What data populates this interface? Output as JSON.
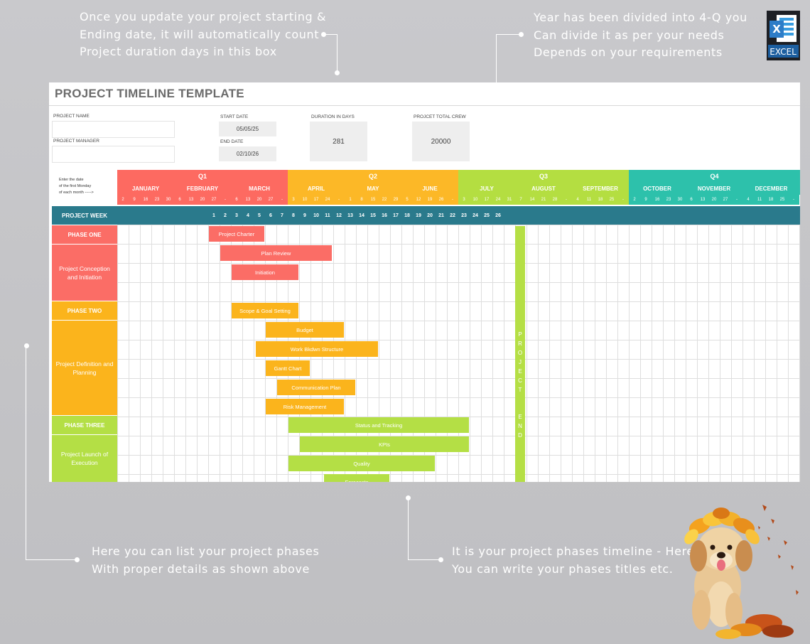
{
  "annotations": {
    "top_left": "Once you update your project starting &\nEnding date, it will automatically count\nProject duration days in this box",
    "top_right": "Year has been divided into 4-Q you\nCan divide it as per your needs\nDepends on your requirements",
    "bottom_left": "Here you can list your project phases\nWith proper details as shown above",
    "bottom_right": "It is your project phases timeline - Here\nYou can write your phases titles etc."
  },
  "excel_badge": {
    "letter": "X",
    "label": "EXCEL",
    "icon": "excel-icon"
  },
  "sheet": {
    "title": "PROJECT TIMELINE TEMPLATE",
    "project_name_label": "PROJECT NAME",
    "project_manager_label": "PROJECT MANAGER",
    "start_date_label": "START DATE",
    "start_date": "05/05/25",
    "end_date_label": "END DATE",
    "end_date": "02/10/26",
    "duration_label": "DURATION IN DAYS",
    "duration": "281",
    "crew_label": "PROJCET TOTAL CREW",
    "crew": "20000",
    "hint": "Enter the date\nof the first Monday\nof each month ----->",
    "quarters": [
      "Q1",
      "Q2",
      "Q3",
      "Q4"
    ],
    "months": [
      "JANUARY",
      "FEBRUARY",
      "MARCH",
      "APRIL",
      "MAY",
      "JUNE",
      "JULY",
      "AUGUST",
      "SEPTEMBER",
      "OCTOBER",
      "NOVEMBER",
      "DECEMBER"
    ],
    "days": [
      "2",
      "9",
      "16",
      "23",
      "30",
      "6",
      "13",
      "20",
      "27",
      "-",
      "6",
      "13",
      "20",
      "27",
      "-",
      "3",
      "10",
      "17",
      "24",
      "-",
      "1",
      "8",
      "15",
      "22",
      "29",
      "5",
      "12",
      "19",
      "26",
      "-",
      "3",
      "10",
      "17",
      "24",
      "31",
      "7",
      "14",
      "21",
      "28",
      "-",
      "4",
      "11",
      "18",
      "25",
      "-",
      "2",
      "9",
      "16",
      "23",
      "30",
      "6",
      "13",
      "20",
      "27",
      "-",
      "4",
      "11",
      "18",
      "25",
      "-"
    ],
    "week_label": "PROJECT WEEK",
    "weeks": [
      "1",
      "2",
      "3",
      "4",
      "5",
      "6",
      "7",
      "8",
      "9",
      "10",
      "11",
      "12",
      "13",
      "14",
      "15",
      "16",
      "17",
      "18",
      "19",
      "20",
      "21",
      "22",
      "23",
      "24",
      "25",
      "26"
    ],
    "phases": [
      {
        "title": "PHASE ONE",
        "desc": "Project Conception and Initiation"
      },
      {
        "title": "PHASE TWO",
        "desc": "Project Definition and Planning"
      },
      {
        "title": "PHASE THREE",
        "desc": "Project Launch of Execution"
      }
    ],
    "tasks": [
      "Project Charter",
      "Plan Review",
      "Initiation",
      "Scope & Goal Setting",
      "Budget",
      "Work Bkdwn Structure",
      "Gantt Chart",
      "Communication Plan",
      "Risk Management",
      "Status  and Tracking",
      "KPIs",
      "Quality",
      "Forecasts"
    ],
    "project_end_letters": [
      "P",
      "R",
      "O",
      "J",
      "E",
      "C",
      "T",
      "E",
      "N",
      "D"
    ]
  },
  "colors": {
    "q1": "#fd6a61",
    "q2": "#fcb827",
    "q3": "#b4de41",
    "q4": "#2dc1ab",
    "week_bar": "#2a7a8c",
    "phase_one": "#fb6d66",
    "phase_two": "#fbb41c",
    "phase_three": "#b4df45"
  }
}
